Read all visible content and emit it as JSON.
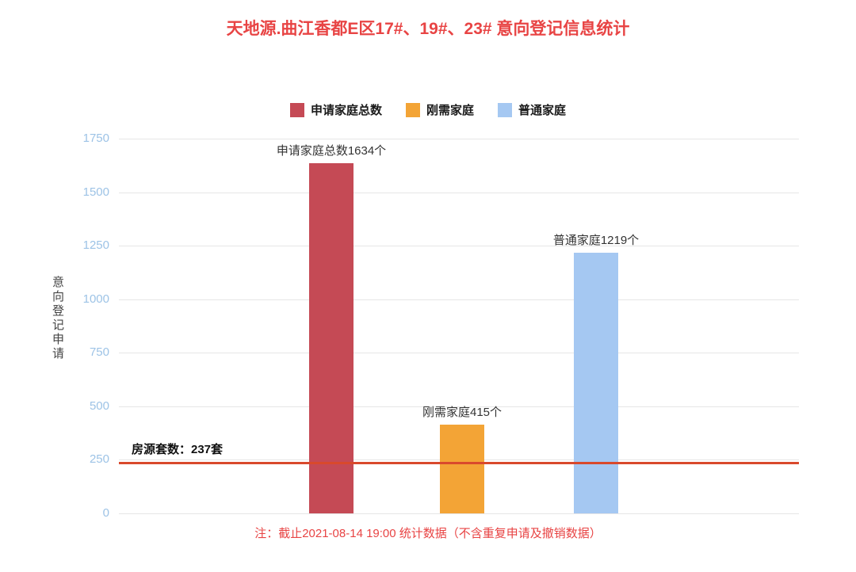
{
  "title": "天地源.曲江香都E区17#、19#、23#  意向登记信息统计",
  "legend": [
    {
      "label": "申请家庭总数",
      "color": "#c54a55"
    },
    {
      "label": "刚需家庭",
      "color": "#f3a436"
    },
    {
      "label": "普通家庭",
      "color": "#a5c8f2"
    }
  ],
  "chart_data": {
    "type": "bar",
    "title": "天地源.曲江香都E区17#、19#、23#  意向登记信息统计",
    "xlabel": "",
    "ylabel": "意向登记申请",
    "ylim": [
      0,
      1750
    ],
    "yticks": [
      0,
      250,
      500,
      750,
      1000,
      1250,
      1500,
      1750
    ],
    "grid": true,
    "legend_position": "top",
    "categories": [
      "申请家庭总数",
      "刚需家庭",
      "普通家庭"
    ],
    "values": [
      1634,
      415,
      1219
    ],
    "bar_labels": [
      "申请家庭总数1634个",
      "刚需家庭415个",
      "普通家庭1219个"
    ],
    "bar_colors": [
      "#c54a55",
      "#f3a436",
      "#a5c8f2"
    ],
    "reference_line": {
      "value": 237,
      "label": "房源套数：237套",
      "color": "#d9492c"
    }
  },
  "footnote": "注：截止2021-08-14 19:00 统计数据（不含重复申请及撤销数据）",
  "colors": {
    "title-red": "#e84444",
    "footnote-red": "#e84444",
    "reference-line": "#d9492c",
    "tick-label": "#9dc3e6",
    "grid": "#e6e6e6"
  }
}
